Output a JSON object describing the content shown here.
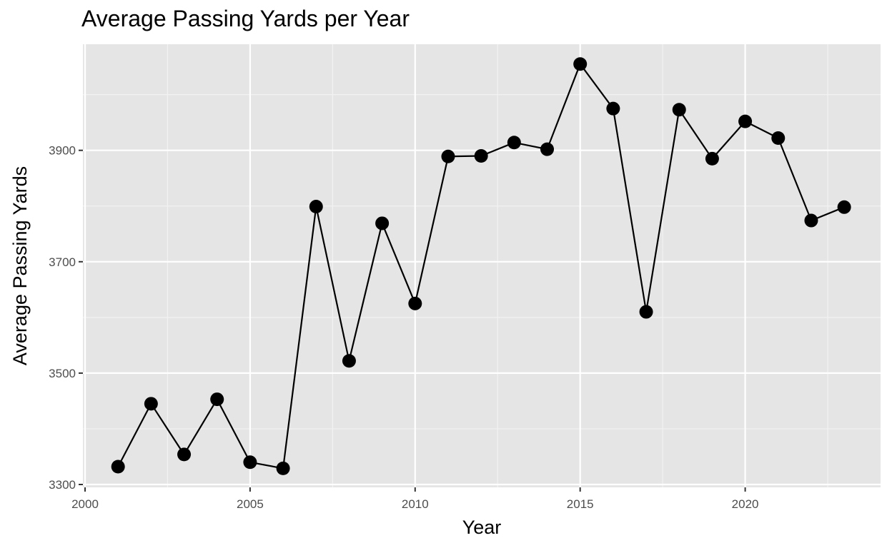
{
  "chart_data": {
    "type": "line",
    "title": "Average Passing Yards per Year",
    "xlabel": "Year",
    "ylabel": "Average Passing Yards",
    "xlim": [
      2000,
      2024
    ],
    "ylim": [
      3300,
      4060
    ],
    "x_ticks": [
      2000,
      2005,
      2010,
      2015,
      2020
    ],
    "y_ticks": [
      3300,
      3500,
      3700,
      3900
    ],
    "grid": true,
    "series": [
      {
        "x": [
          2001,
          2002,
          2003,
          2004,
          2005,
          2006,
          2007,
          2008,
          2009,
          2010,
          2011,
          2012,
          2013,
          2014,
          2015,
          2016,
          2017,
          2018,
          2019,
          2020,
          2021,
          2022,
          2023
        ],
        "y": [
          3332,
          3445,
          3354,
          3453,
          3340,
          3329,
          3799,
          3522,
          3769,
          3625,
          3889,
          3890,
          3914,
          3902,
          4055,
          3975,
          3610,
          3973,
          3885,
          3952,
          3922,
          3774,
          3798
        ]
      }
    ],
    "colors": {
      "panel": "#e5e5e5",
      "grid_major": "#ffffff",
      "line": "#000000",
      "point": "#000000"
    }
  }
}
